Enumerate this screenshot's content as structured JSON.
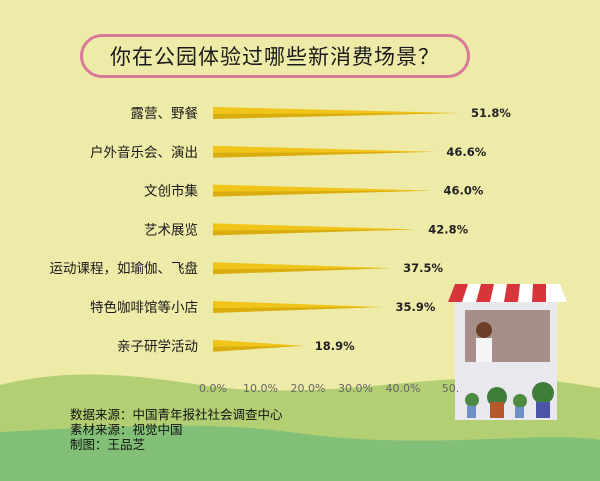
{
  "chart_data": {
    "type": "bar",
    "orientation": "horizontal",
    "title": "你在公园体验过哪些新消费场景？",
    "categories": [
      "露营、野餐",
      "户外音乐会、演出",
      "文创市集",
      "艺术展览",
      "运动课程，如瑜伽、飞盘",
      "特色咖啡馆等小店",
      "亲子研学活动"
    ],
    "values": [
      51.8,
      46.6,
      46.0,
      42.8,
      37.5,
      35.9,
      18.9
    ],
    "value_labels": [
      "51.8%",
      "46.6%",
      "46.0%",
      "42.8%",
      "37.5%",
      "35.9%",
      "18.9%"
    ],
    "xticks": [
      "0.0%",
      "10.0%",
      "20.0%",
      "30.0%",
      "40.0%",
      "50."
    ],
    "xlim": [
      0,
      50
    ],
    "grid": false,
    "bar_color": "#f0c419",
    "bar_shade": "#c79a08"
  },
  "credits": {
    "source": "数据来源：中国青年报社社会调查中心",
    "material": "素材来源：视觉中国",
    "author": "制图：王品芝"
  },
  "colors": {
    "background": "#eeeaa8",
    "title_border": "#d9799a",
    "hill_light": "#b3cf74",
    "hill_dark": "#82c077"
  }
}
